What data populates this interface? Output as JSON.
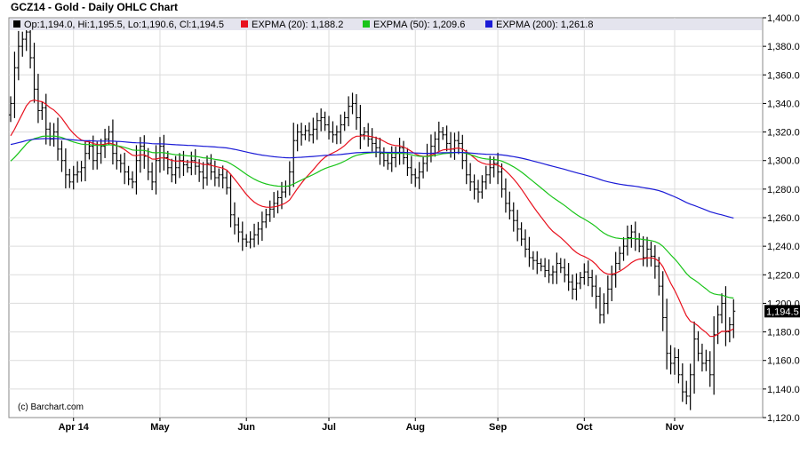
{
  "chart_data": {
    "type": "ohlc",
    "title": "GCZ14 - Gold - Daily OHLC Chart",
    "legend": [
      {
        "text": "Op:1,194.0, Hi:1,195.5, Lo:1,190.6, Cl:1,194.5",
        "color": "#000000"
      },
      {
        "text": "EXPMA (20): 1,188.2",
        "color": "#e8111e"
      },
      {
        "text": "EXPMA (50): 1,209.6",
        "color": "#19c419"
      },
      {
        "text": "EXPMA (200): 1,261.8",
        "color": "#1a1ad6"
      }
    ],
    "credit": "(c) Barchart.com",
    "last_price": "1,194.5",
    "last_value": 1194.5,
    "ylim": [
      1120,
      1400
    ],
    "y_ticks": [
      1120,
      1140,
      1160,
      1180,
      1200,
      1220,
      1240,
      1260,
      1280,
      1300,
      1320,
      1340,
      1360,
      1380,
      1400
    ],
    "y_tick_labels": [
      "1,120.0",
      "1,140.0",
      "1,160.0",
      "1,180.0",
      "1,200.0",
      "1,220.0",
      "1,240.0",
      "1,260.0",
      "1,280.0",
      "1,300.0",
      "1,320.0",
      "1,340.0",
      "1,360.0",
      "1,380.0",
      "1,400.0"
    ],
    "x_ticks": [
      {
        "label": "Apr 14",
        "bar": 16
      },
      {
        "label": "May",
        "bar": 38
      },
      {
        "label": "Jun",
        "bar": 60
      },
      {
        "label": "Jul",
        "bar": 81
      },
      {
        "label": "Aug",
        "bar": 103
      },
      {
        "label": "Sep",
        "bar": 124
      },
      {
        "label": "Oct",
        "bar": 146
      },
      {
        "label": "Nov",
        "bar": 169
      }
    ],
    "bar_count": 183,
    "close": [
      1340,
      1365,
      1380,
      1385,
      1390,
      1372,
      1350,
      1335,
      1337,
      1322,
      1315,
      1320,
      1308,
      1300,
      1290,
      1285,
      1290,
      1292,
      1295,
      1305,
      1310,
      1300,
      1305,
      1310,
      1315,
      1320,
      1305,
      1300,
      1298,
      1292,
      1287,
      1285,
      1300,
      1310,
      1303,
      1292,
      1285,
      1300,
      1310,
      1302,
      1295,
      1290,
      1295,
      1300,
      1297,
      1295,
      1300,
      1296,
      1292,
      1288,
      1298,
      1292,
      1288,
      1290,
      1288,
      1281,
      1262,
      1255,
      1250,
      1245,
      1243,
      1245,
      1248,
      1252,
      1257,
      1262,
      1266,
      1270,
      1274,
      1278,
      1282,
      1292,
      1314,
      1320,
      1318,
      1321,
      1318,
      1322,
      1328,
      1330,
      1325,
      1320,
      1318,
      1320,
      1325,
      1330,
      1338,
      1340,
      1330,
      1318,
      1320,
      1315,
      1312,
      1309,
      1305,
      1300,
      1298,
      1302,
      1305,
      1309,
      1302,
      1295,
      1290,
      1288,
      1292,
      1298,
      1305,
      1310,
      1315,
      1320,
      1318,
      1312,
      1308,
      1314,
      1312,
      1300,
      1290,
      1285,
      1280,
      1278,
      1285,
      1290,
      1295,
      1298,
      1292,
      1280,
      1270,
      1265,
      1258,
      1252,
      1245,
      1238,
      1232,
      1230,
      1228,
      1226,
      1223,
      1220,
      1222,
      1228,
      1225,
      1220,
      1215,
      1210,
      1214,
      1218,
      1222,
      1218,
      1212,
      1205,
      1192,
      1200,
      1210,
      1220,
      1228,
      1235,
      1240,
      1246,
      1250,
      1245,
      1240,
      1232,
      1238,
      1233,
      1226,
      1212,
      1190,
      1165,
      1158,
      1162,
      1150,
      1138,
      1135,
      1150,
      1175,
      1165,
      1158,
      1160,
      1150,
      1178,
      1192,
      1200,
      1180,
      1185,
      1194.5
    ],
    "ema": [
      {
        "name": "EXPMA (20)",
        "period": 20,
        "color": "#e8111e"
      },
      {
        "name": "EXPMA (50)",
        "period": 50,
        "color": "#19c419"
      },
      {
        "name": "EXPMA (200)",
        "period": 200,
        "color": "#1a1ad6"
      }
    ]
  }
}
